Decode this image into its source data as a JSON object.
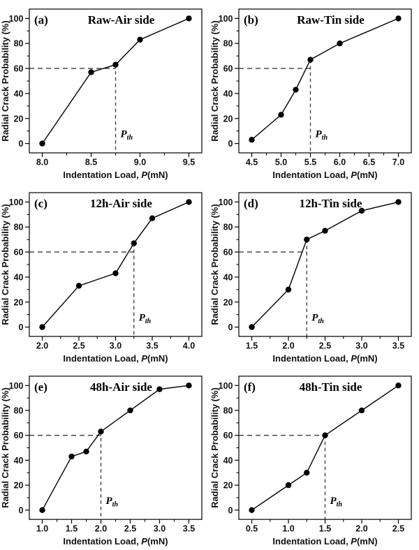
{
  "figure": {
    "background": "#ffffff",
    "line_color": "#000000",
    "point_color": "#000000",
    "dash_color": "#3a3a3a",
    "xlabel_parts": {
      "prefix": "Indentation Load, ",
      "italic": "P",
      "suffix": "(mN)"
    },
    "pth_parts": {
      "main": "P",
      "sub": "th"
    }
  },
  "chart_data": [
    {
      "type": "line",
      "panel_label": "(a)",
      "title": "Raw-Air side",
      "xlabel": "Indentation Load, P(mN)",
      "ylabel": "Radial Crack Probability (%)",
      "x": [
        8.0,
        8.5,
        8.75,
        9.0,
        9.5
      ],
      "y": [
        0,
        57,
        63,
        83,
        100
      ],
      "xticks": [
        8.0,
        8.5,
        9.0,
        9.5
      ],
      "xtick_labels": [
        "8.0",
        "8.5",
        "9.0",
        "9.5"
      ],
      "yticks": [
        0,
        20,
        40,
        60,
        80,
        100
      ],
      "ytick_labels": [
        "0",
        "20",
        "40",
        "60",
        "80",
        "100"
      ],
      "xlim": [
        7.87,
        9.63
      ],
      "ylim": [
        -8,
        108
      ],
      "grid": false,
      "dash_y": 60,
      "pth": 8.75
    },
    {
      "type": "line",
      "panel_label": "(b)",
      "title": "Raw-Tin side",
      "xlabel": "Indentation Load, P(mN)",
      "ylabel": "Radial Crack Probability (%)",
      "x": [
        4.5,
        5.0,
        5.25,
        5.5,
        6.0,
        7.0
      ],
      "y": [
        3,
        23,
        43,
        67,
        80,
        100
      ],
      "xticks": [
        4.5,
        5.0,
        5.5,
        6.0,
        6.5,
        7.0
      ],
      "xtick_labels": [
        "4.5",
        "5.0",
        "5.5",
        "6.0",
        "6.5",
        "7.0"
      ],
      "yticks": [
        0,
        20,
        40,
        60,
        80,
        100
      ],
      "ytick_labels": [
        "0",
        "20",
        "40",
        "60",
        "80",
        "100"
      ],
      "xlim": [
        4.28,
        7.22
      ],
      "ylim": [
        -8,
        108
      ],
      "grid": false,
      "dash_y": 60,
      "pth": 5.5
    },
    {
      "type": "line",
      "panel_label": "(c)",
      "title": "12h-Air side",
      "xlabel": "Indentation Load, P(mN)",
      "ylabel": "Radial Crack Probability (%)",
      "x": [
        2.0,
        2.5,
        3.0,
        3.25,
        3.5,
        4.0
      ],
      "y": [
        0,
        33,
        43,
        67,
        87,
        100
      ],
      "xticks": [
        2.0,
        2.5,
        3.0,
        3.5,
        4.0
      ],
      "xtick_labels": [
        "2.0",
        "2.5",
        "3.0",
        "3.5",
        "4.0"
      ],
      "yticks": [
        0,
        20,
        40,
        60,
        80,
        100
      ],
      "ytick_labels": [
        "0",
        "20",
        "40",
        "60",
        "80",
        "100"
      ],
      "xlim": [
        1.82,
        4.18
      ],
      "ylim": [
        -8,
        108
      ],
      "grid": false,
      "dash_y": 60,
      "pth": 3.25
    },
    {
      "type": "line",
      "panel_label": "(d)",
      "title": "12h-Tin side",
      "xlabel": "Indentation Load, P(mN)",
      "ylabel": "Radial Crack Probability (%)",
      "x": [
        1.5,
        2.0,
        2.25,
        2.5,
        3.0,
        3.5
      ],
      "y": [
        0,
        30,
        70,
        77,
        93,
        100
      ],
      "xticks": [
        1.5,
        2.0,
        2.5,
        3.0,
        3.5
      ],
      "xtick_labels": [
        "1.5",
        "2.0",
        "2.5",
        "3.0",
        "3.5"
      ],
      "yticks": [
        0,
        20,
        40,
        60,
        80,
        100
      ],
      "ytick_labels": [
        "0",
        "20",
        "40",
        "60",
        "80",
        "100"
      ],
      "xlim": [
        1.32,
        3.68
      ],
      "ylim": [
        -8,
        108
      ],
      "grid": false,
      "dash_y": 60,
      "pth": 2.25
    },
    {
      "type": "line",
      "panel_label": "(e)",
      "title": "48h-Air side",
      "xlabel": "Indentation Load, P(mN)",
      "ylabel": "Radial Crack Probability (%)",
      "x": [
        1.0,
        1.5,
        1.75,
        2.0,
        2.5,
        3.0,
        3.5
      ],
      "y": [
        0,
        43,
        47,
        63,
        80,
        97,
        100
      ],
      "xticks": [
        1.0,
        1.5,
        2.0,
        2.5,
        3.0,
        3.5
      ],
      "xtick_labels": [
        "1.0",
        "1.5",
        "2.0",
        "2.5",
        "3.0",
        "3.5"
      ],
      "yticks": [
        0,
        20,
        40,
        60,
        80,
        100
      ],
      "ytick_labels": [
        "0",
        "20",
        "40",
        "60",
        "80",
        "100"
      ],
      "xlim": [
        0.78,
        3.72
      ],
      "ylim": [
        -8,
        108
      ],
      "grid": false,
      "dash_y": 60,
      "pth": 2.0
    },
    {
      "type": "line",
      "panel_label": "(f)",
      "title": "48h-Tin side",
      "xlabel": "Indentation Load, P(mN)",
      "ylabel": "Radial Crack Probability (%)",
      "x": [
        0.5,
        1.0,
        1.25,
        1.5,
        2.0,
        2.5
      ],
      "y": [
        0,
        20,
        30,
        60,
        80,
        100
      ],
      "xticks": [
        0.5,
        1.0,
        1.5,
        2.0,
        2.5
      ],
      "xtick_labels": [
        "0.5",
        "1.0",
        "1.5",
        "2.0",
        "2.5"
      ],
      "yticks": [
        0,
        20,
        40,
        60,
        80,
        100
      ],
      "ytick_labels": [
        "0",
        "20",
        "40",
        "60",
        "80",
        "100"
      ],
      "xlim": [
        0.32,
        2.68
      ],
      "ylim": [
        -8,
        108
      ],
      "grid": false,
      "dash_y": 60,
      "pth": 1.5
    }
  ]
}
